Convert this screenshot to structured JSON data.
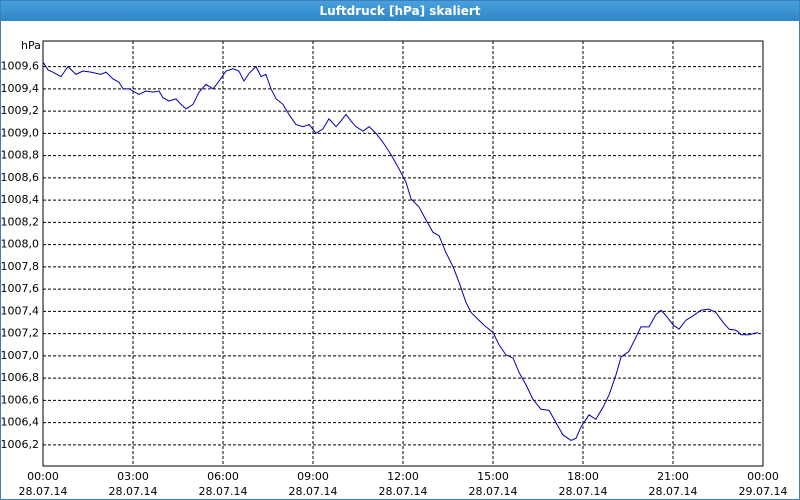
{
  "chart_data": {
    "type": "line",
    "title": "Luftdruck [hPa] skaliert",
    "y_unit": "hPa",
    "xlim": [
      0,
      24
    ],
    "xticks": [
      {
        "value": 0,
        "label": "00:00\n28.07.14"
      },
      {
        "value": 3,
        "label": "03:00\n28.07.14"
      },
      {
        "value": 6,
        "label": "06:00\n28.07.14"
      },
      {
        "value": 9,
        "label": "09:00\n28.07.14"
      },
      {
        "value": 12,
        "label": "12:00\n28.07.14"
      },
      {
        "value": 15,
        "label": "15:00\n28.07.14"
      },
      {
        "value": 18,
        "label": "18:00\n28.07.14"
      },
      {
        "value": 21,
        "label": "21:00\n28.07.14"
      },
      {
        "value": 24,
        "label": "00:00\n29.07.14"
      }
    ],
    "ylim": [
      1006.01,
      1009.83
    ],
    "yticks": [
      {
        "value": 1006.2,
        "label": "1006,2"
      },
      {
        "value": 1006.4,
        "label": "1006,4"
      },
      {
        "value": 1006.6,
        "label": "1006,6"
      },
      {
        "value": 1006.8,
        "label": "1006,8"
      },
      {
        "value": 1007.0,
        "label": "1007,0"
      },
      {
        "value": 1007.2,
        "label": "1007,2"
      },
      {
        "value": 1007.4,
        "label": "1007,4"
      },
      {
        "value": 1007.6,
        "label": "1007,6"
      },
      {
        "value": 1007.8,
        "label": "1007,8"
      },
      {
        "value": 1008.0,
        "label": "1008,0"
      },
      {
        "value": 1008.2,
        "label": "1008,2"
      },
      {
        "value": 1008.4,
        "label": "1008,4"
      },
      {
        "value": 1008.6,
        "label": "1008,6"
      },
      {
        "value": 1008.8,
        "label": "1008,8"
      },
      {
        "value": 1009.0,
        "label": "1009,0"
      },
      {
        "value": 1009.2,
        "label": "1009,2"
      },
      {
        "value": 1009.4,
        "label": "1009,4"
      },
      {
        "value": 1009.6,
        "label": "1009,6"
      }
    ],
    "grid": true,
    "x": [
      0,
      0.17,
      0.33,
      0.6,
      0.83,
      1.1,
      1.33,
      1.6,
      1.93,
      2.1,
      2.33,
      2.53,
      2.67,
      2.87,
      3.0,
      3.2,
      3.43,
      3.67,
      3.87,
      4.0,
      4.2,
      4.43,
      4.6,
      4.77,
      5.0,
      5.2,
      5.43,
      5.67,
      5.87,
      6.1,
      6.33,
      6.53,
      6.7,
      6.87,
      7.1,
      7.27,
      7.43,
      7.6,
      7.77,
      8.0,
      8.2,
      8.43,
      8.67,
      8.87,
      9.1,
      9.33,
      9.53,
      9.77,
      9.93,
      10.1,
      10.27,
      10.43,
      10.67,
      10.87,
      11.1,
      11.33,
      11.6,
      11.87,
      12.1,
      12.27,
      12.53,
      12.77,
      13.0,
      13.2,
      13.43,
      13.67,
      13.87,
      14.1,
      14.27,
      14.53,
      14.77,
      15.0,
      15.2,
      15.43,
      15.67,
      15.87,
      16.1,
      16.33,
      16.6,
      16.87,
      17.1,
      17.33,
      17.6,
      17.77,
      17.93,
      18.2,
      18.43,
      18.67,
      18.87,
      19.1,
      19.27,
      19.53,
      19.77,
      19.93,
      20.2,
      20.43,
      20.6,
      20.77,
      21.0,
      21.2,
      21.43,
      21.67,
      21.93,
      22.2,
      22.43,
      22.67,
      22.87,
      23.1,
      23.27,
      23.53,
      23.83
    ],
    "series": [
      {
        "name": "Luftdruck",
        "color": "#0000aa",
        "values": [
          1009.64,
          1009.57,
          1009.55,
          1009.51,
          1009.6,
          1009.53,
          1009.56,
          1009.55,
          1009.53,
          1009.55,
          1009.49,
          1009.46,
          1009.4,
          1009.4,
          1009.38,
          1009.35,
          1009.38,
          1009.37,
          1009.38,
          1009.32,
          1009.29,
          1009.31,
          1009.26,
          1009.22,
          1009.26,
          1009.37,
          1009.44,
          1009.4,
          1009.47,
          1009.56,
          1009.58,
          1009.56,
          1009.47,
          1009.54,
          1009.6,
          1009.51,
          1009.53,
          1009.4,
          1009.31,
          1009.26,
          1009.17,
          1009.08,
          1009.06,
          1009.08,
          1009.0,
          1009.04,
          1009.13,
          1009.06,
          1009.11,
          1009.17,
          1009.11,
          1009.06,
          1009.02,
          1009.06,
          1009.0,
          1008.92,
          1008.81,
          1008.68,
          1008.56,
          1008.41,
          1008.34,
          1008.22,
          1008.11,
          1008.08,
          1007.93,
          1007.8,
          1007.66,
          1007.48,
          1007.39,
          1007.32,
          1007.26,
          1007.21,
          1007.1,
          1007.01,
          1006.98,
          1006.85,
          1006.74,
          1006.61,
          1006.52,
          1006.51,
          1006.4,
          1006.29,
          1006.24,
          1006.26,
          1006.36,
          1006.47,
          1006.43,
          1006.54,
          1006.65,
          1006.83,
          1006.99,
          1007.04,
          1007.17,
          1007.26,
          1007.26,
          1007.37,
          1007.41,
          1007.36,
          1007.28,
          1007.24,
          1007.32,
          1007.36,
          1007.41,
          1007.42,
          1007.39,
          1007.3,
          1007.24,
          1007.23,
          1007.19,
          1007.19,
          1007.21
        ]
      }
    ]
  }
}
